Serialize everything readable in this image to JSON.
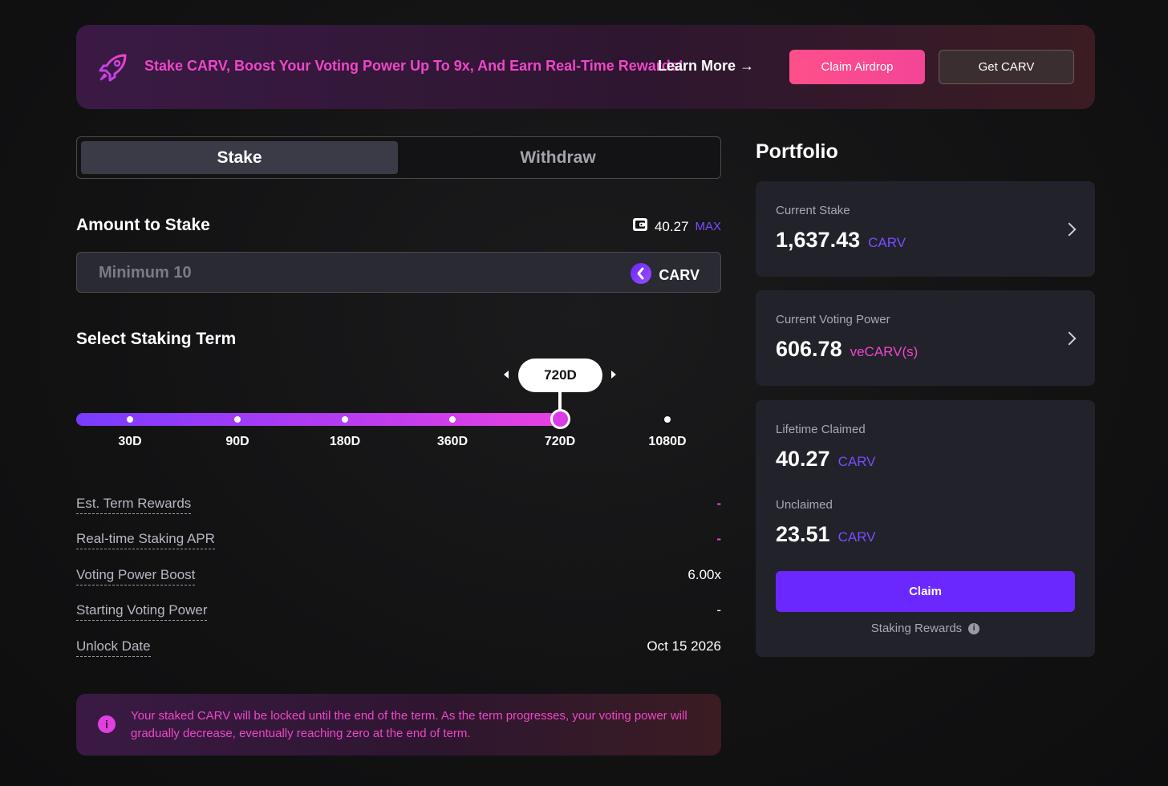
{
  "banner": {
    "message": "Stake CARV, Boost Your Voting Power Up To 9x, And Earn Real-Time Rewards!",
    "learn_more": "Learn More →",
    "claim_airdrop": "Claim Airdrop",
    "get_carv": "Get CARV",
    "icon": "rocket-icon"
  },
  "tabs": [
    {
      "label": "Stake",
      "active": true
    },
    {
      "label": "Withdraw",
      "active": false
    }
  ],
  "stake": {
    "amount_title": "Amount to Stake",
    "wallet_balance": "40.27",
    "max_label": "MAX",
    "amount_placeholder": "Minimum 10",
    "amount_value": "",
    "token": "CARV"
  },
  "term": {
    "title": "Select Staking Term",
    "selected": "720D",
    "options": [
      "30D",
      "90D",
      "180D",
      "360D",
      "720D",
      "1080D"
    ]
  },
  "details": [
    {
      "label": "Est. Term Rewards",
      "value": "-"
    },
    {
      "label": "Real-time Staking APR",
      "value": "-"
    },
    {
      "label": "Voting Power Boost",
      "value": "6.00x"
    },
    {
      "label": "Starting Voting Power",
      "value": "-"
    },
    {
      "label": "Unlock Date",
      "value": "Oct 15 2026"
    }
  ],
  "notice": {
    "text": "Your staked CARV will be locked until the end of the term. As the term progresses, your voting power will gradually decrease, eventually reaching zero at the end of term."
  },
  "portfolio": {
    "title": "Portfolio",
    "current_stake": {
      "label": "Current Stake",
      "value": "1,637.43",
      "unit": "CARV"
    },
    "voting_power": {
      "label": "Current Voting Power",
      "value": "606.78",
      "unit": "veCARV(s)"
    },
    "lifetime_claimed": {
      "label": "Lifetime Claimed",
      "value": "40.27",
      "unit": "CARV"
    },
    "unclaimed": {
      "label": "Unclaimed",
      "value": "23.51",
      "unit": "CARV"
    },
    "claim_label": "Claim",
    "rewards_note": "Staking Rewards"
  },
  "colors": {
    "accent_purple": "#6a28ff",
    "accent_pink": "#ee47c8",
    "airdrop_button": "#ff4f8a",
    "card_bg": "#22222b"
  }
}
